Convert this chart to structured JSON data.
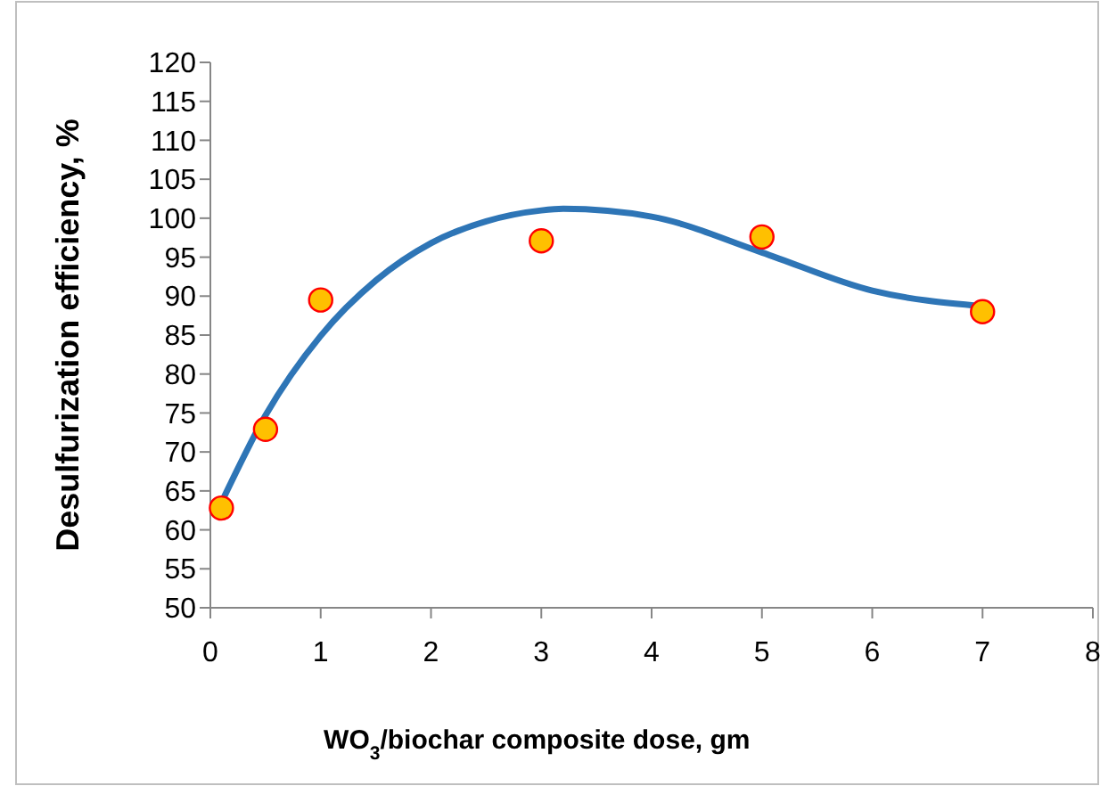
{
  "chart_data": {
    "type": "scatter",
    "xlabel": "WO$_{3}$/biochar composite dose, gm",
    "ylabel": "Desulfurization efficiency, %",
    "xlim": [
      0,
      8
    ],
    "ylim": [
      50,
      120
    ],
    "xticks": [
      0,
      1,
      2,
      3,
      4,
      5,
      6,
      7,
      8
    ],
    "yticks": [
      50,
      55,
      60,
      65,
      70,
      75,
      80,
      85,
      90,
      95,
      100,
      105,
      110,
      115,
      120
    ],
    "grid": false,
    "marker": "circle",
    "series": [
      {
        "color": "#ffc000",
        "x": [
          0.1,
          0.5,
          1,
          3,
          5,
          7
        ],
        "values": [
          62.8,
          72.9,
          89.5,
          97.1,
          97.6,
          88
        ]
      },
      {
        "type": "line",
        "color": "#2e75b6",
        "marker": "none",
        "line_style": "solid",
        "x": [
          0.1,
          0.5,
          1,
          1.5,
          2,
          2.5,
          3,
          3.2,
          4,
          5,
          6,
          7
        ],
        "values": [
          63.5,
          74.7,
          84.9,
          92,
          96.8,
          99.6,
          101,
          101.2,
          100.2,
          95.6,
          90.7,
          88.7
        ]
      }
    ]
  }
}
